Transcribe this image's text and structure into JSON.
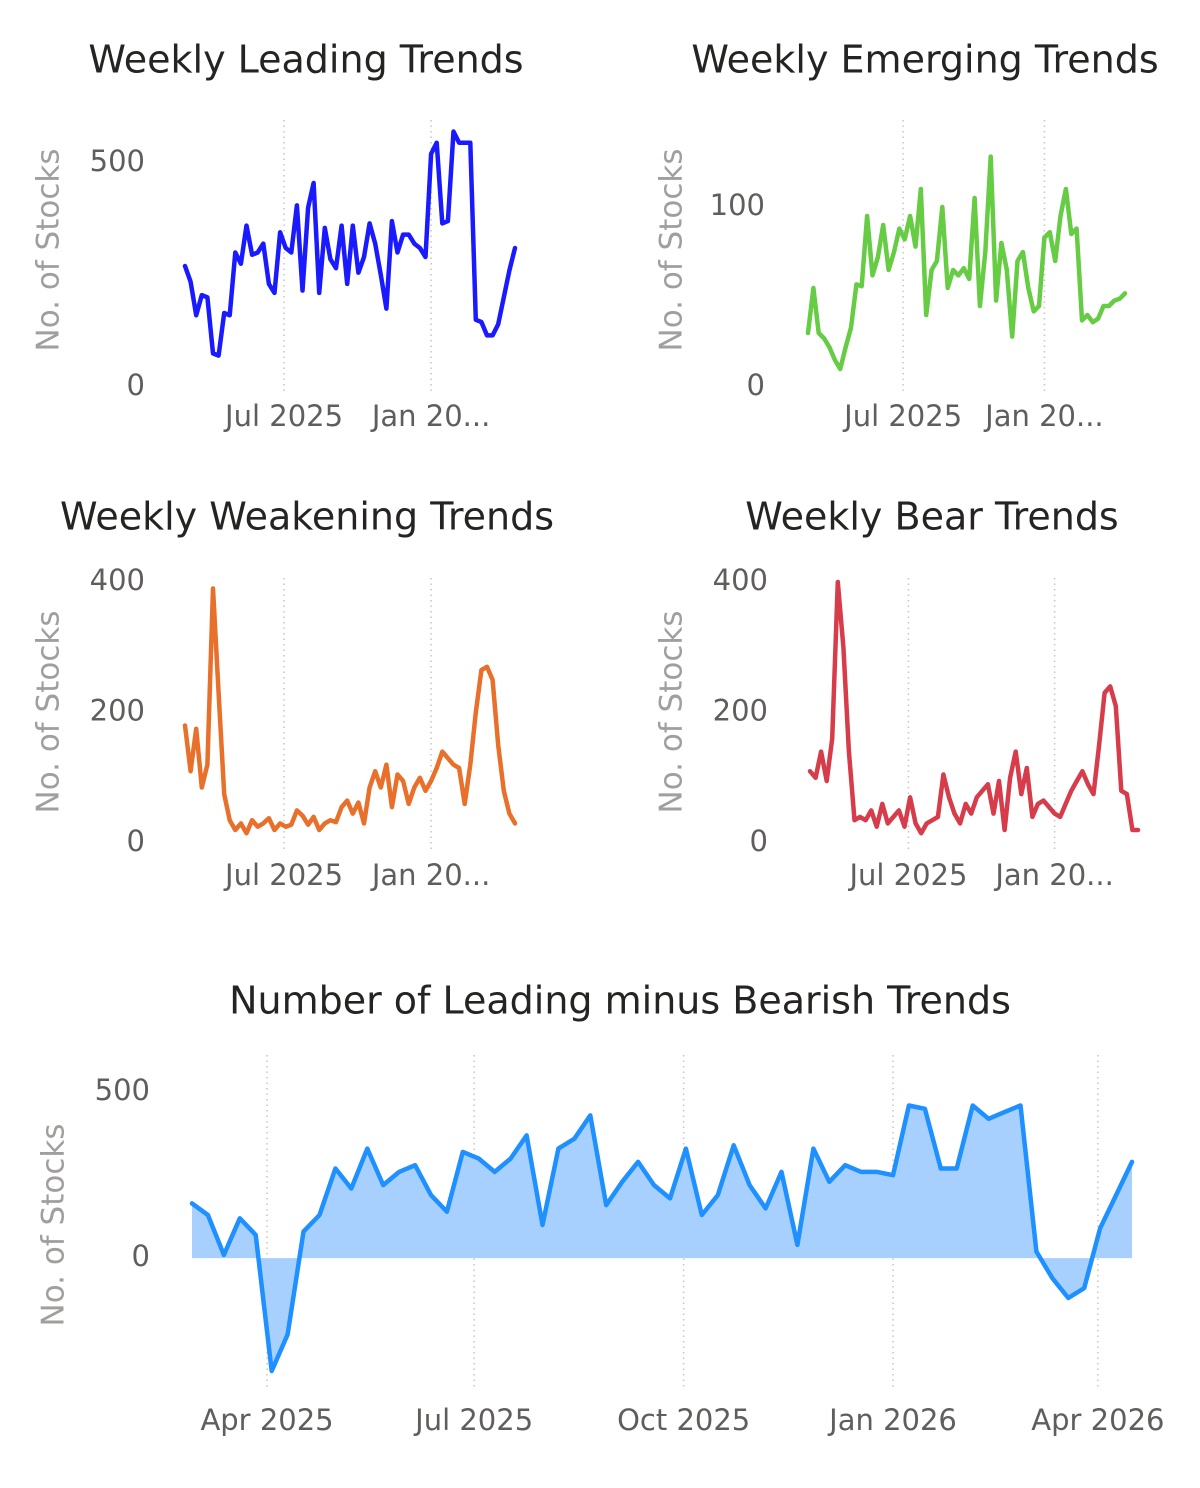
{
  "chart_data": [
    {
      "type": "line",
      "title": "Weekly Leading Trends",
      "y_label": "No. of Stocks",
      "color": "#1a1aff",
      "x_grid": true,
      "categories": [
        null,
        null,
        null,
        null,
        null,
        null,
        null,
        null,
        null,
        null,
        null,
        null,
        null,
        null,
        null,
        null,
        null,
        null,
        null,
        null,
        null,
        null,
        null,
        null,
        null,
        null,
        null,
        null,
        null,
        null,
        null,
        null,
        null,
        null,
        null,
        null,
        null,
        null,
        null,
        null,
        null,
        null,
        null,
        null,
        null,
        null,
        null,
        null,
        null,
        null,
        null,
        null,
        null,
        null,
        null,
        null,
        null,
        null,
        null,
        null
      ],
      "xticks": [
        {
          "value": 17.71,
          "label": "Jul 2025"
        },
        {
          "value": 44,
          "label": "Jan 20..."
        }
      ],
      "ylim": [
        0,
        580
      ],
      "yticks": [
        0,
        500
      ],
      "values": [
        270,
        235,
        160,
        205,
        200,
        75,
        70,
        165,
        160,
        300,
        275,
        360,
        295,
        300,
        320,
        230,
        210,
        345,
        310,
        300,
        405,
        215,
        400,
        455,
        210,
        355,
        285,
        265,
        360,
        230,
        360,
        255,
        290,
        365,
        320,
        250,
        175,
        370,
        300,
        340,
        340,
        320,
        310,
        290,
        520,
        545,
        365,
        370,
        570,
        545,
        545,
        545,
        150,
        145,
        115,
        115,
        140,
        200,
        260,
        310
      ]
    },
    {
      "type": "line",
      "title": "Weekly Emerging Trends",
      "y_label": "No. of Stocks",
      "color": "#66cc44",
      "x_grid": true,
      "categories": [
        null,
        null,
        null,
        null,
        null,
        null,
        null,
        null,
        null,
        null,
        null,
        null,
        null,
        null,
        null,
        null,
        null,
        null,
        null,
        null,
        null,
        null,
        null,
        null,
        null,
        null,
        null,
        null,
        null,
        null,
        null,
        null,
        null,
        null,
        null,
        null,
        null,
        null,
        null,
        null,
        null,
        null,
        null,
        null,
        null,
        null,
        null,
        null,
        null,
        null,
        null,
        null,
        null,
        null,
        null,
        null,
        null,
        null,
        null,
        null
      ],
      "xticks": [
        {
          "value": 17.71,
          "label": "Jul 2025"
        },
        {
          "value": 44,
          "label": "Jan 20..."
        }
      ],
      "ylim": [
        0,
        130
      ],
      "yticks": [
        0,
        100
      ],
      "values": [
        30,
        55,
        30,
        27,
        22,
        15,
        10,
        22,
        33,
        57,
        56,
        95,
        62,
        72,
        90,
        65,
        75,
        88,
        82,
        95,
        78,
        110,
        40,
        65,
        70,
        100,
        55,
        65,
        62,
        66,
        60,
        105,
        45,
        75,
        128,
        48,
        80,
        65,
        28,
        70,
        75,
        55,
        42,
        45,
        83,
        86,
        70,
        95,
        110,
        85,
        88,
        37,
        40,
        36,
        38,
        45,
        45,
        48,
        49,
        52
      ]
    },
    {
      "type": "line",
      "title": "Weekly Weakening Trends",
      "y_label": "No. of Stocks",
      "color": "#e8702a",
      "x_grid": true,
      "categories": [
        null,
        null,
        null,
        null,
        null,
        null,
        null,
        null,
        null,
        null,
        null,
        null,
        null,
        null,
        null,
        null,
        null,
        null,
        null,
        null,
        null,
        null,
        null,
        null,
        null,
        null,
        null,
        null,
        null,
        null,
        null,
        null,
        null,
        null,
        null,
        null,
        null,
        null,
        null,
        null,
        null,
        null,
        null,
        null,
        null,
        null,
        null,
        null,
        null,
        null,
        null,
        null,
        null,
        null,
        null,
        null,
        null,
        null,
        null,
        null
      ],
      "xticks": [
        {
          "value": 17.71,
          "label": "Jul 2025"
        },
        {
          "value": 44,
          "label": "Jan 20..."
        }
      ],
      "ylim": [
        0,
        400
      ],
      "yticks": [
        0,
        200,
        400
      ],
      "values": [
        180,
        110,
        175,
        85,
        120,
        390,
        230,
        75,
        35,
        20,
        30,
        15,
        35,
        25,
        30,
        38,
        20,
        30,
        25,
        28,
        50,
        42,
        28,
        40,
        20,
        30,
        35,
        32,
        55,
        65,
        45,
        62,
        30,
        85,
        110,
        85,
        120,
        55,
        105,
        95,
        60,
        85,
        100,
        80,
        95,
        115,
        140,
        130,
        120,
        115,
        60,
        120,
        200,
        265,
        270,
        250,
        150,
        80,
        45,
        30
      ]
    },
    {
      "type": "line",
      "title": "Weekly Bear Trends",
      "y_label": "No. of Stocks",
      "color": "#d63c4a",
      "x_grid": true,
      "categories": [
        null,
        null,
        null,
        null,
        null,
        null,
        null,
        null,
        null,
        null,
        null,
        null,
        null,
        null,
        null,
        null,
        null,
        null,
        null,
        null,
        null,
        null,
        null,
        null,
        null,
        null,
        null,
        null,
        null,
        null,
        null,
        null,
        null,
        null,
        null,
        null,
        null,
        null,
        null,
        null,
        null,
        null,
        null,
        null,
        null,
        null,
        null,
        null,
        null,
        null,
        null,
        null,
        null,
        null,
        null,
        null,
        null,
        null,
        null,
        null
      ],
      "xticks": [
        {
          "value": 17.71,
          "label": "Jul 2025"
        },
        {
          "value": 44,
          "label": "Jan 20..."
        }
      ],
      "ylim": [
        0,
        400
      ],
      "yticks": [
        0,
        200,
        400
      ],
      "values": [
        110,
        100,
        140,
        95,
        160,
        400,
        300,
        140,
        35,
        40,
        35,
        50,
        25,
        60,
        30,
        40,
        50,
        25,
        70,
        30,
        15,
        30,
        35,
        40,
        105,
        70,
        45,
        30,
        60,
        45,
        70,
        80,
        90,
        45,
        95,
        20,
        100,
        140,
        75,
        115,
        40,
        60,
        65,
        55,
        45,
        40,
        60,
        80,
        95,
        110,
        90,
        75,
        150,
        230,
        240,
        210,
        80,
        75,
        20,
        20
      ]
    },
    {
      "type": "area",
      "title": "Number of Leading minus Bearish Trends",
      "y_label": "No. of Stocks",
      "color": "#1e90ff",
      "area_color": "#a8d0ff",
      "x_grid": true,
      "categories": [
        null,
        null,
        null,
        null,
        null,
        null,
        null,
        null,
        null,
        null,
        null,
        null,
        null,
        null,
        null,
        null,
        null,
        null,
        null,
        null,
        null,
        null,
        null,
        null,
        null,
        null,
        null,
        null,
        null,
        null,
        null,
        null,
        null,
        null,
        null,
        null,
        null,
        null,
        null,
        null,
        null,
        null,
        null,
        null,
        null,
        null,
        null,
        null,
        null,
        null,
        null,
        null,
        null,
        null,
        null,
        null,
        null,
        null,
        null,
        null
      ],
      "xticks": [
        {
          "value": 4.71,
          "label": "Apr 2025"
        },
        {
          "value": 17.71,
          "label": "Jul 2025"
        },
        {
          "value": 30.86,
          "label": "Oct 2025"
        },
        {
          "value": 44,
          "label": "Jan 2026"
        },
        {
          "value": 56.86,
          "label": "Apr 2026"
        }
      ],
      "ylim": [
        -370,
        600
      ],
      "yticks": [
        0,
        500
      ],
      "values": [
        165,
        130,
        10,
        120,
        70,
        -340,
        -230,
        80,
        130,
        270,
        210,
        330,
        220,
        260,
        280,
        190,
        140,
        320,
        300,
        260,
        300,
        370,
        100,
        330,
        360,
        430,
        160,
        230,
        290,
        220,
        180,
        330,
        130,
        190,
        340,
        220,
        150,
        260,
        40,
        330,
        230,
        280,
        260,
        260,
        250,
        460,
        450,
        270,
        270,
        460,
        420,
        440,
        460,
        20,
        -60,
        -120,
        -90,
        90,
        190,
        290
      ]
    }
  ]
}
